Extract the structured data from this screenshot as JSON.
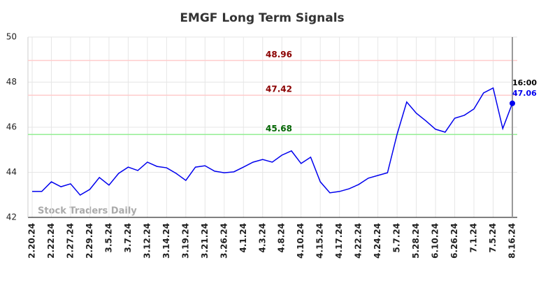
{
  "chart_data": {
    "type": "line",
    "title": "EMGF Long Term Signals",
    "watermark": "Stock Traders Daily",
    "categories": [
      "2.20.24",
      null,
      "2.22.24",
      null,
      "2.27.24",
      null,
      "2.29.24",
      null,
      "3.5.24",
      null,
      "3.7.24",
      null,
      "3.12.24",
      null,
      "3.14.24",
      null,
      "3.19.24",
      null,
      "3.21.24",
      null,
      "3.26.24",
      null,
      "4.1.24",
      null,
      "4.3.24",
      null,
      "4.8.24",
      null,
      "4.10.24",
      null,
      "4.15.24",
      null,
      "4.17.24",
      null,
      "4.22.24",
      null,
      "4.24.24",
      null,
      "5.7.24",
      null,
      "5.28.24",
      null,
      "6.10.24",
      null,
      "6.26.24",
      null,
      "7.1.24",
      null,
      "7.5.24",
      null,
      "8.16.24"
    ],
    "series": [
      {
        "color": "#0000ee",
        "values": [
          43.15,
          43.15,
          43.58,
          43.36,
          43.49,
          42.99,
          43.24,
          43.77,
          43.43,
          43.95,
          44.23,
          44.08,
          44.45,
          44.26,
          44.2,
          43.95,
          43.64,
          44.23,
          44.29,
          44.05,
          43.98,
          44.02,
          44.23,
          44.45,
          44.57,
          44.45,
          44.76,
          44.95,
          44.39,
          44.67,
          43.58,
          43.09,
          43.15,
          43.27,
          43.46,
          43.74,
          43.86,
          43.98,
          45.69,
          47.12,
          46.62,
          46.28,
          45.91,
          45.78,
          46.4,
          46.53,
          46.81,
          47.52,
          47.74,
          45.94,
          47.06
        ]
      }
    ],
    "last_label": "16:00",
    "hlines": [
      {
        "value": 48.96,
        "color": "#ffcccc",
        "label_color": "#8b0000"
      },
      {
        "value": 47.42,
        "color": "#ffcccc",
        "label_color": "#8b0000"
      },
      {
        "value": 45.68,
        "color": "#90ee90",
        "label_color": "#006400"
      }
    ],
    "ylim": [
      42,
      50
    ],
    "yticks": [
      42,
      44,
      46,
      48,
      50
    ],
    "grid": true
  }
}
